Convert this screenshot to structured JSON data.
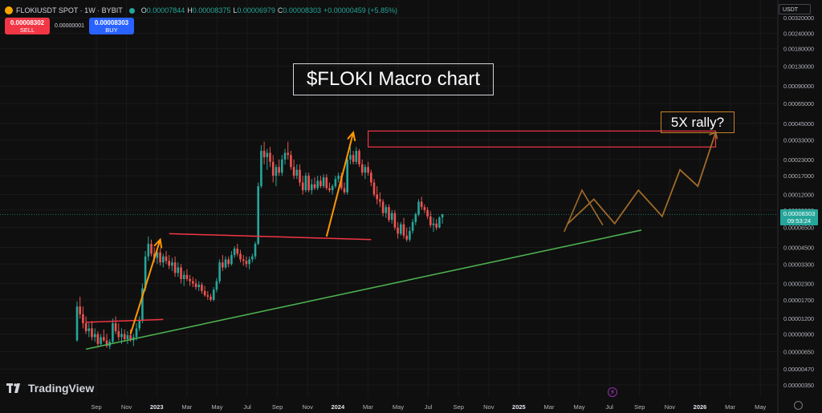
{
  "header": {
    "symbol": "FLOKIUSDT SPOT · 1W · BYBIT",
    "open_label": "O",
    "open": "0.00007844",
    "high_label": "H",
    "high": "0.00008375",
    "low_label": "L",
    "low": "0.00006979",
    "close_label": "C",
    "close": "0.00008303",
    "change": "+0.00000459 (+5.85%)",
    "up_color": "#26a69a"
  },
  "trade": {
    "sell_price": "0.00008302",
    "sell_label": "SELL",
    "spread": "0.00000001",
    "buy_price": "0.00008303",
    "buy_label": "BUY"
  },
  "currency": "USDT",
  "branding": "TradingView",
  "annotations": {
    "title": "$FLOKI Macro chart",
    "target": "5X rally?"
  },
  "last_price": {
    "price": "0.00008303",
    "countdown": "09:53:24"
  },
  "chart_data": {
    "type": "candlestick",
    "interval": "1W",
    "y_scale": "log",
    "y_tick_labels": [
      "0.00320000",
      "0.00240000",
      "0.00180000",
      "0.00130000",
      "0.00090000",
      "0.00065000",
      "0.00045000",
      "0.00033000",
      "0.00023000",
      "0.00017000",
      "0.00012000",
      "0.00009000",
      "0.00006500",
      "0.00004500",
      "0.00003300",
      "0.00002300",
      "0.00001700",
      "0.00001200",
      "0.00000900",
      "0.00000650",
      "0.00000470",
      "0.00000350"
    ],
    "x_tick_labels": [
      "Sep",
      "Nov",
      "2023",
      "Mar",
      "May",
      "Jul",
      "Sep",
      "Nov",
      "2024",
      "Mar",
      "May",
      "Jul",
      "Sep",
      "Nov",
      "2025",
      "Mar",
      "May",
      "Jul",
      "Sep",
      "Nov",
      "2026",
      "Mar",
      "May"
    ],
    "ohlc": [
      [
        8e-06,
        1.65e-05,
        7.8e-06,
        1.5e-05
      ],
      [
        1.5e-05,
        1.8e-05,
        1.2e-05,
        1.3e-05
      ],
      [
        1.3e-05,
        1.5e-05,
        1e-05,
        1.1e-05
      ],
      [
        1.1e-05,
        1.25e-05,
        9e-06,
        9.5e-06
      ],
      [
        9.5e-06,
        1.1e-05,
        8.5e-06,
        1e-05
      ],
      [
        1e-05,
        1.15e-05,
        8e-06,
        8.5e-06
      ],
      [
        8.5e-06,
        1e-05,
        7.8e-06,
        9e-06
      ],
      [
        9e-06,
        9.5e-06,
        7e-06,
        7.5e-06
      ],
      [
        7.5e-06,
        9e-06,
        7.2e-06,
        8.5e-06
      ],
      [
        8.5e-06,
        9.8e-06,
        7.8e-06,
        8e-06
      ],
      [
        8e-06,
        9e-06,
        7e-06,
        7.2e-06
      ],
      [
        7.2e-06,
        8.2e-06,
        6.8e-06,
        7.8e-06
      ],
      [
        7.8e-06,
        1.2e-05,
        7.5e-06,
        1.1e-05
      ],
      [
        1.1e-05,
        1.25e-05,
        9e-06,
        9.5e-06
      ],
      [
        9.5e-06,
        1.1e-05,
        8e-06,
        8.5e-06
      ],
      [
        8.5e-06,
        1e-05,
        7.5e-06,
        9e-06
      ],
      [
        9e-06,
        9.8e-06,
        7.8e-06,
        8.2e-06
      ],
      [
        8.2e-06,
        9.5e-06,
        7.5e-06,
        8.8e-06
      ],
      [
        8.8e-06,
        9.8e-06,
        7.8e-06,
        8e-06
      ],
      [
        8e-06,
        9e-06,
        7.2e-06,
        8.5e-06
      ],
      [
        8.5e-06,
        1.1e-05,
        8e-06,
        1e-05
      ],
      [
        1e-05,
        1.25e-05,
        9.5e-06,
        1.15e-05
      ],
      [
        1.15e-05,
        2.3e-05,
        1.1e-05,
        2.1e-05
      ],
      [
        2.1e-05,
        4.2e-05,
        2e-05,
        3.8e-05
      ],
      [
        3.8e-05,
        5.5e-05,
        3.5e-05,
        4.8e-05
      ],
      [
        4.8e-05,
        5.2e-05,
        3.8e-05,
        4e-05
      ],
      [
        4e-05,
        4.5e-05,
        3.4e-05,
        3.7e-05
      ],
      [
        3.7e-05,
        4.3e-05,
        3.3e-05,
        4.1e-05
      ],
      [
        4.1e-05,
        4.4e-05,
        3.2e-05,
        3.4e-05
      ],
      [
        3.4e-05,
        4e-05,
        3.1e-05,
        3.8e-05
      ],
      [
        3.8e-05,
        4.2e-05,
        3.3e-05,
        3.5e-05
      ],
      [
        3.5e-05,
        3.9e-05,
        3e-05,
        3.2e-05
      ],
      [
        3.2e-05,
        3.7e-05,
        2.9e-05,
        3.4e-05
      ],
      [
        3.4e-05,
        3.8e-05,
        2.6e-05,
        2.8e-05
      ],
      [
        2.8e-05,
        3.4e-05,
        2.6e-05,
        3.1e-05
      ],
      [
        3.1e-05,
        3.3e-05,
        2.3e-05,
        2.5e-05
      ],
      [
        2.5e-05,
        2.9e-05,
        2.2e-05,
        2.7e-05
      ],
      [
        2.7e-05,
        3e-05,
        2.4e-05,
        2.5e-05
      ],
      [
        2.5e-05,
        2.7e-05,
        2.2e-05,
        2.4e-05
      ],
      [
        2.4e-05,
        2.6e-05,
        2.15e-05,
        2.3e-05
      ],
      [
        2.3e-05,
        2.5e-05,
        2.05e-05,
        2.15e-05
      ],
      [
        2.15e-05,
        2.4e-05,
        2e-05,
        2.25e-05
      ],
      [
        2.25e-05,
        2.35e-05,
        1.9e-05,
        2e-05
      ],
      [
        2e-05,
        2.2e-05,
        1.8e-05,
        1.85e-05
      ],
      [
        1.85e-05,
        2e-05,
        1.7e-05,
        1.8e-05
      ],
      [
        1.8e-05,
        1.9e-05,
        1.65e-05,
        1.7e-05
      ],
      [
        1.7e-05,
        2.15e-05,
        1.65e-05,
        2.05e-05
      ],
      [
        2.05e-05,
        2.55e-05,
        1.95e-05,
        2.4e-05
      ],
      [
        2.4e-05,
        3.6e-05,
        2.3e-05,
        3.4e-05
      ],
      [
        3.4e-05,
        3.9e-05,
        2.9e-05,
        3.1e-05
      ],
      [
        3.1e-05,
        3.8e-05,
        3e-05,
        3.6e-05
      ],
      [
        3.6e-05,
        3.8e-05,
        3.1e-05,
        3.3e-05
      ],
      [
        3.3e-05,
        4.2e-05,
        3.2e-05,
        3.9e-05
      ],
      [
        3.9e-05,
        4.6e-05,
        3.7e-05,
        4.4e-05
      ],
      [
        4.4e-05,
        4.8e-05,
        3.8e-05,
        4e-05
      ],
      [
        4e-05,
        4.3e-05,
        3.4e-05,
        3.6e-05
      ],
      [
        3.6e-05,
        3.9e-05,
        3.2e-05,
        3.5e-05
      ],
      [
        3.5e-05,
        3.8e-05,
        3.1e-05,
        3.3e-05
      ],
      [
        3.3e-05,
        3.8e-05,
        3e-05,
        3.6e-05
      ],
      [
        3.6e-05,
        4e-05,
        3.4e-05,
        3.8e-05
      ],
      [
        3.8e-05,
        5e-05,
        3.6e-05,
        4.8e-05
      ],
      [
        4.8e-05,
        0.00015,
        4.7e-05,
        0.00014
      ],
      [
        0.00014,
        0.0003,
        0.000135,
        0.00027
      ],
      [
        0.00027,
        0.00032,
        0.00021,
        0.00024
      ],
      [
        0.00024,
        0.00028,
        0.00019,
        0.00026
      ],
      [
        0.00026,
        0.00029,
        0.0002,
        0.00022
      ],
      [
        0.00022,
        0.00025,
        0.00015,
        0.00017
      ],
      [
        0.00017,
        0.00021,
        0.00014,
        0.0002
      ],
      [
        0.0002,
        0.00023,
        0.00017,
        0.00018
      ],
      [
        0.00018,
        0.00025,
        0.00017,
        0.00023
      ],
      [
        0.00023,
        0.00028,
        0.00021,
        0.00026
      ],
      [
        0.00026,
        0.00032,
        0.00023,
        0.00025
      ],
      [
        0.00025,
        0.00027,
        0.00019,
        0.0002
      ],
      [
        0.0002,
        0.00023,
        0.00016,
        0.00017
      ],
      [
        0.00017,
        0.00021,
        0.00016,
        0.00019
      ],
      [
        0.00019,
        0.00021,
        0.00014,
        0.00015
      ],
      [
        0.00015,
        0.00017,
        0.00012,
        0.00013
      ],
      [
        0.00013,
        0.00018,
        0.000125,
        0.00017
      ],
      [
        0.00017,
        0.00018,
        0.000125,
        0.00013
      ],
      [
        0.00013,
        0.00016,
        0.00012,
        0.000145
      ],
      [
        0.000145,
        0.000165,
        0.00013,
        0.000135
      ],
      [
        0.000135,
        0.00017,
        0.00013,
        0.000155
      ],
      [
        0.000155,
        0.00017,
        0.000135,
        0.00014
      ],
      [
        0.00014,
        0.000175,
        0.000135,
        0.000165
      ],
      [
        0.000165,
        0.000175,
        0.00013,
        0.000135
      ],
      [
        0.000135,
        0.00015,
        0.000125,
        0.00013
      ],
      [
        0.00013,
        0.000145,
        0.00012,
        0.00014
      ],
      [
        0.00014,
        0.00017,
        0.000135,
        0.00016
      ],
      [
        0.00016,
        0.00018,
        0.00015,
        0.00017
      ],
      [
        0.00017,
        0.00018,
        0.00013,
        0.000135
      ],
      [
        0.000135,
        0.00015,
        0.00012,
        0.000125
      ],
      [
        0.000125,
        0.00025,
        0.00012,
        0.00023
      ],
      [
        0.00023,
        0.00029,
        0.00021,
        0.00025
      ],
      [
        0.00025,
        0.00027,
        0.00021,
        0.00022
      ],
      [
        0.00022,
        0.00029,
        0.00021,
        0.00027
      ],
      [
        0.00027,
        0.00028,
        0.0002,
        0.00021
      ],
      [
        0.00021,
        0.00023,
        0.00017,
        0.00018
      ],
      [
        0.00018,
        0.00021,
        0.00016,
        0.0002
      ],
      [
        0.0002,
        0.00022,
        0.00017,
        0.00018
      ],
      [
        0.00018,
        0.00019,
        0.00014,
        0.00015
      ],
      [
        0.00015,
        0.00016,
        0.000115,
        0.00012
      ],
      [
        0.00012,
        0.00014,
        0.0001,
        0.00011
      ],
      [
        0.00011,
        0.000125,
        9.5e-05,
        0.000105
      ],
      [
        0.000105,
        0.00011,
        8e-05,
        8.5e-05
      ],
      [
        8.5e-05,
        0.0001,
        7.8e-05,
        9.5e-05
      ],
      [
        9.5e-05,
        0.0001,
        7.2e-05,
        7.5e-05
      ],
      [
        7.5e-05,
        9e-05,
        7e-05,
        8.5e-05
      ],
      [
        8.5e-05,
        9e-05,
        6.2e-05,
        6.5e-05
      ],
      [
        6.5e-05,
        7.2e-05,
        5.3e-05,
        5.8e-05
      ],
      [
        5.8e-05,
        7.2e-05,
        5.6e-05,
        6.9e-05
      ],
      [
        6.9e-05,
        7.8e-05,
        5.3e-05,
        5.6e-05
      ],
      [
        5.6e-05,
        6.5e-05,
        5e-05,
        5.2e-05
      ],
      [
        5.2e-05,
        6.6e-05,
        5e-05,
        6.1e-05
      ],
      [
        6.1e-05,
        7.6e-05,
        5.8e-05,
        7.2e-05
      ],
      [
        7.2e-05,
        8.6e-05,
        6.8e-05,
        8.3e-05
      ],
      [
        8.3e-05,
        0.00011,
        8e-05,
        0.000105
      ],
      [
        0.000105,
        0.000115,
        9e-05,
        9.5e-05
      ],
      [
        9.5e-05,
        0.0001,
        8.5e-05,
        9e-05
      ],
      [
        9e-05,
        9.5e-05,
        7.6e-05,
        8e-05
      ],
      [
        8e-05,
        8.8e-05,
        6.5e-05,
        6.8e-05
      ],
      [
        6.8e-05,
        7.8e-05,
        6e-05,
        7e-05
      ],
      [
        7e-05,
        7.6e-05,
        6.2e-05,
        6.5e-05
      ],
      [
        6.5e-05,
        8e-05,
        6.4e-05,
        7.84e-05
      ],
      [
        7.84e-05,
        8.38e-05,
        6.98e-05,
        8.3e-05
      ]
    ],
    "overlays": {
      "resistance_red_1": [
        [
          1.12e-05,
          1.18e-05
        ]
      ],
      "resistance_red_2": [
        5.8e-05,
        5.2e-05
      ],
      "support_green": [
        6.8e-06,
        6.2e-05
      ],
      "resistance_box": [
        0.00029,
        0.00039
      ],
      "projection": [
        6.9e-05,
        0.00011,
        7e-05,
        0.00013,
        8e-05,
        0.00019,
        0.00014,
        0.00038
      ]
    }
  }
}
